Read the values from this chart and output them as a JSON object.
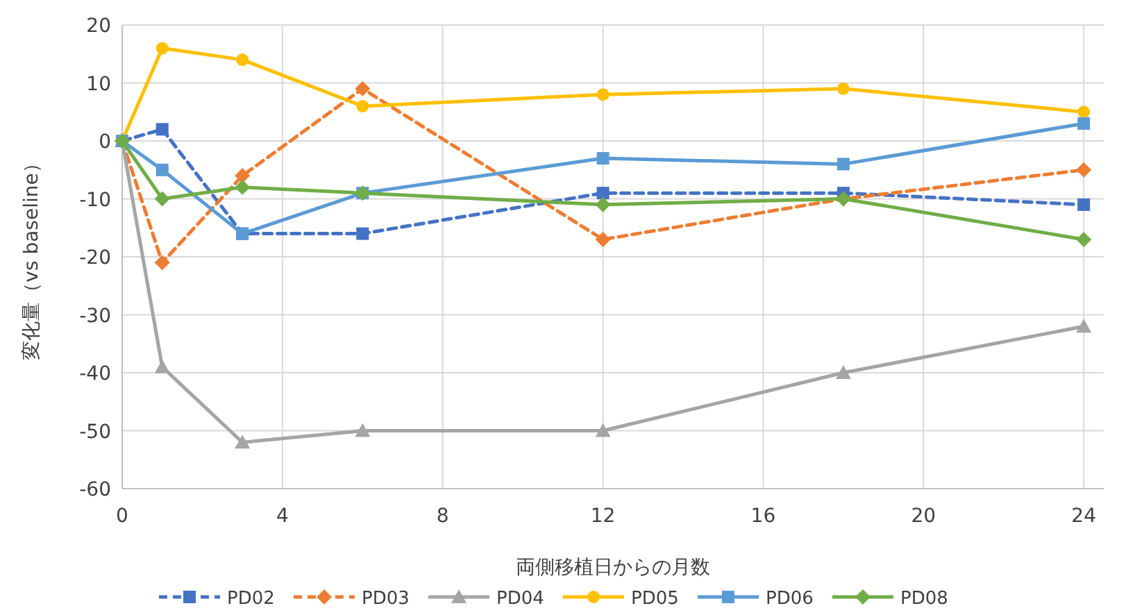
{
  "chart_data": {
    "type": "line",
    "xlabel": "両側移植日からの月数",
    "ylabel": "変化量（vs baseline）",
    "x": [
      0,
      1,
      3,
      6,
      12,
      18,
      24
    ],
    "xlim": [
      0,
      24.5
    ],
    "xticks": [
      0,
      4,
      8,
      12,
      16,
      20,
      24
    ],
    "ylim": [
      -60,
      20
    ],
    "yticks": [
      -60,
      -50,
      -40,
      -30,
      -20,
      -10,
      0,
      10,
      20
    ],
    "grid": true,
    "legend": "bottom",
    "series": [
      {
        "name": "PD02",
        "color": "#4472c4",
        "marker": "square",
        "line_style": "dashed",
        "values": [
          0,
          2,
          -16,
          -16,
          -9,
          -9,
          -11
        ]
      },
      {
        "name": "PD03",
        "color": "#ed7d31",
        "marker": "diamond",
        "line_style": "dashed",
        "values": [
          0,
          -21,
          -6,
          9,
          -17,
          -10,
          -5
        ]
      },
      {
        "name": "PD04",
        "color": "#a5a5a5",
        "marker": "triangle",
        "line_style": "solid",
        "values": [
          0,
          -39,
          -52,
          -50,
          -50,
          -40,
          -32
        ]
      },
      {
        "name": "PD05",
        "color": "#ffc000",
        "marker": "circle",
        "line_style": "solid",
        "values": [
          0,
          16,
          14,
          6,
          8,
          9,
          5
        ]
      },
      {
        "name": "PD06",
        "color": "#5b9bd5",
        "marker": "square",
        "line_style": "solid",
        "values": [
          0,
          -5,
          -16,
          -9,
          -3,
          -4,
          3
        ]
      },
      {
        "name": "PD08",
        "color": "#70ad47",
        "marker": "diamond",
        "line_style": "solid",
        "values": [
          0,
          -10,
          -8,
          -9,
          -11,
          -10,
          -17
        ]
      }
    ]
  }
}
